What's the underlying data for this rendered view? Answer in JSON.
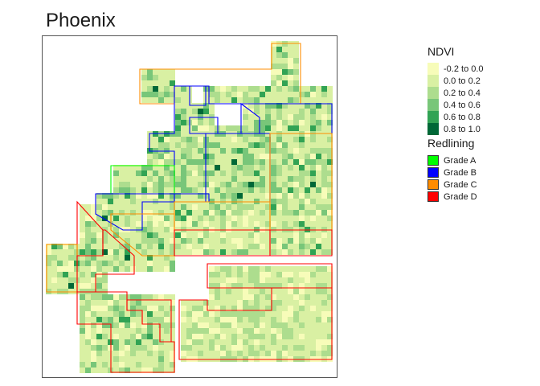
{
  "title": "Phoenix",
  "ndvi_legend": {
    "title": "NDVI",
    "classes": [
      {
        "label": "-0.2 to 0.0",
        "color": "#f7fcb9"
      },
      {
        "label": "0.0 to 0.2",
        "color": "#d9f0a3"
      },
      {
        "label": "0.2 to 0.4",
        "color": "#addd8e"
      },
      {
        "label": "0.4 to 0.6",
        "color": "#78c679"
      },
      {
        "label": "0.6 to 0.8",
        "color": "#31a354"
      },
      {
        "label": "0.8 to 1.0",
        "color": "#006837"
      }
    ]
  },
  "redlining_legend": {
    "title": "Redlining",
    "grades": [
      {
        "label": "Grade A",
        "color": "#00ff00"
      },
      {
        "label": "Grade B",
        "color": "#0000ff"
      },
      {
        "label": "Grade C",
        "color": "#ff8c00"
      },
      {
        "label": "Grade D",
        "color": "#ff0000"
      }
    ]
  },
  "map": {
    "frame_color": "#555555",
    "background": "#ffffff",
    "raster_weights": [
      0.12,
      0.48,
      0.26,
      0.1,
      0.035,
      0.005
    ]
  }
}
